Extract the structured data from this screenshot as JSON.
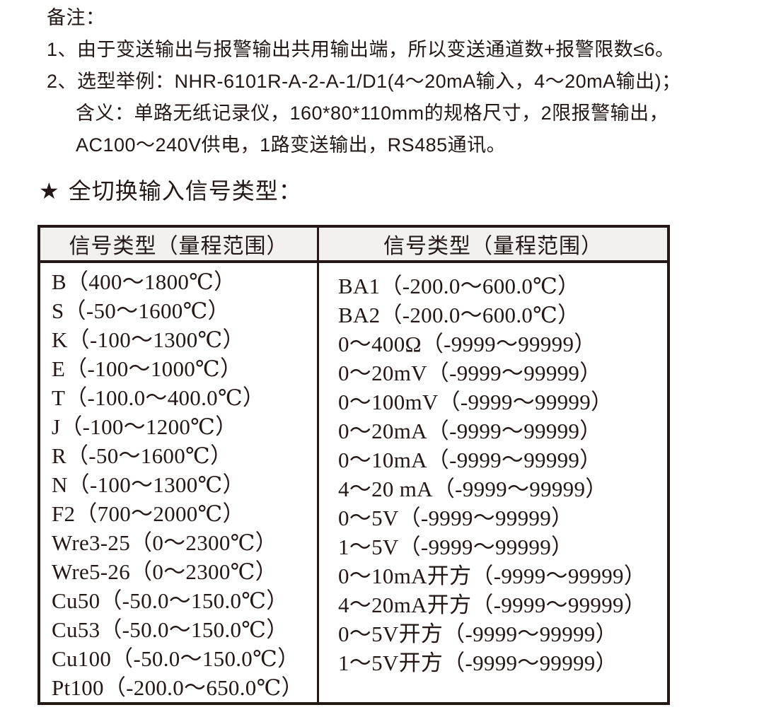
{
  "notes": {
    "title": "备注：",
    "items": [
      "1、由于变送输出与报警输出共用输出端，所以变送通道数+报警限数≤6。",
      "2、选型举例：NHR-6101R-A-2-A-1/D1(4～20mA输入，4～20mA输出)；",
      "含义：单路无纸记录仪，160*80*110mm的规格尺寸，2限报警输出，",
      "AC100～240V供电，1路变送输出，RS485通讯。"
    ]
  },
  "section": {
    "star": "★",
    "title": "全切换输入信号类型："
  },
  "table": {
    "headers": [
      "信号类型（量程范围）",
      "信号类型（量程范围）"
    ],
    "left_column": [
      "B（400～1800℃）",
      "S（-50～1600℃）",
      "K（-100～1300℃）",
      "E（-100～1000℃）",
      "T（-100.0～400.0℃）",
      "J（-100～1200℃）",
      "R（-50～1600℃）",
      "N（-100～1300℃）",
      "F2（700～2000℃）",
      "Wre3-25（0～2300℃）",
      "Wre5-26（0～2300℃）",
      "Cu50（-50.0～150.0℃）",
      "Cu53（-50.0～150.0℃）",
      "Cu100（-50.0～150.0℃）",
      "Pt100（-200.0～650.0℃）"
    ],
    "right_column": [
      "BA1（-200.0～600.0℃）",
      "BA2（-200.0～600.0℃）",
      "0～400Ω（-9999～99999）",
      "0～20mV（-9999～99999）",
      "0～100mV（-9999～99999）",
      "0～20mA（-9999～99999）",
      "0～10mA（-9999～99999）",
      "4～20 mA（-9999～99999）",
      "0～5V（-9999～99999）",
      "1～5V（-9999～99999）",
      "0～10mA开方（-9999～99999）",
      "4～20mA开方（-9999～99999）",
      "0～5V开方（-9999～99999）",
      "1～5V开方（-9999～99999）"
    ],
    "colors": {
      "text": "#231815",
      "border": "#231815",
      "header_background": "#f2f1ee"
    }
  }
}
